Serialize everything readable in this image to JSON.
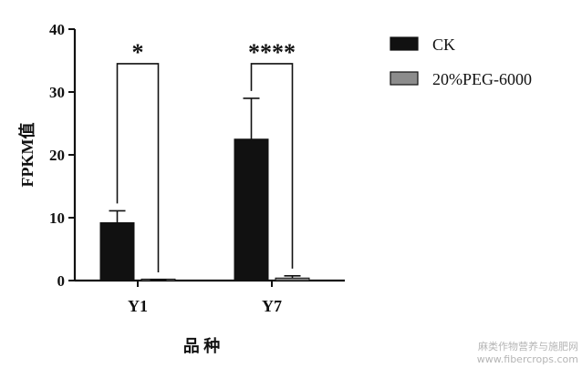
{
  "chart_data": {
    "type": "bar",
    "categories": [
      "Y1",
      "Y7"
    ],
    "series": [
      {
        "name": "CK",
        "values": [
          9.2,
          22.5
        ],
        "errors": [
          1.9,
          6.5
        ],
        "color": "#111111"
      },
      {
        "name": "20%PEG-6000",
        "values": [
          0.1,
          0.4
        ],
        "errors": [
          0.05,
          0.35
        ],
        "color": "#8c8c8c"
      }
    ],
    "significance": [
      "*",
      "****"
    ],
    "xlabel": "品 种",
    "ylabel": "FPKM值",
    "ylim": [
      0,
      40
    ],
    "yticks": [
      "0",
      "10",
      "20",
      "30",
      "40"
    ],
    "grid": false,
    "legend_position": "top-right"
  },
  "watermark": {
    "line1": "麻类作物营养与施肥网",
    "line2": "www.fibercrops.com"
  }
}
